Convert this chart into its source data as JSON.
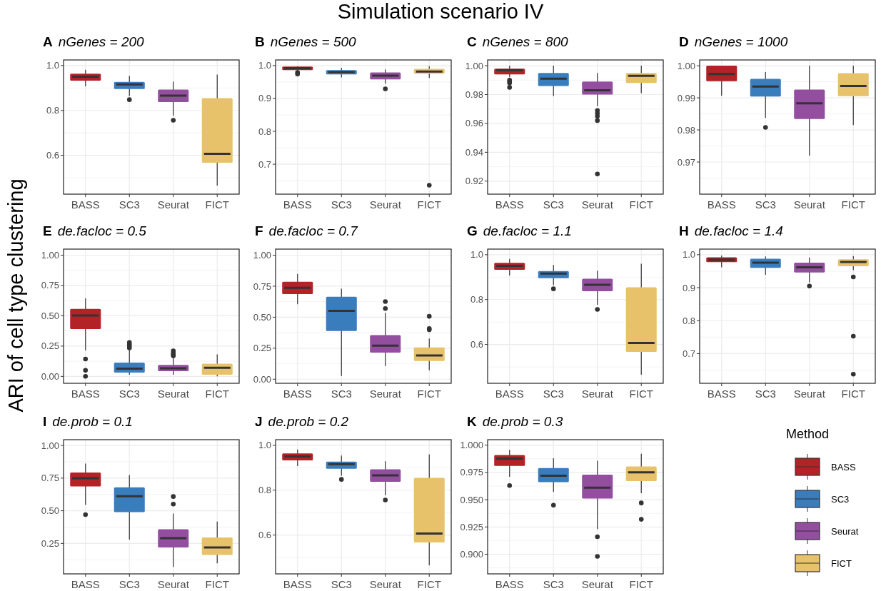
{
  "chart_data": [
    {
      "type": "box",
      "title": "nGenes = 200",
      "annotations": [
        "A",
        "Simulation scenario IV"
      ],
      "ylabel": "ARI of cell type clustering",
      "categories": [
        "BASS",
        "SC3",
        "Seurat",
        "FICT"
      ],
      "colors": [
        "#b22226",
        "#3a7dbd",
        "#944ea0",
        "#e8c26a"
      ],
      "ylim": [
        0.427,
        1.025
      ],
      "yticks": [
        {
          "value": 0.6,
          "label": "0.6"
        },
        {
          "value": 0.8,
          "label": "0.8"
        },
        {
          "value": 1,
          "label": "1.0"
        }
      ],
      "grid": true,
      "boxes": [
        {
          "low": 0.907,
          "q1": 0.933,
          "median": 0.95,
          "q3": 0.964,
          "high": 0.981
        },
        {
          "low": 0.864,
          "q1": 0.895,
          "median": 0.916,
          "q3": 0.927,
          "high": 0.954,
          "outliers": [
            0.848
          ]
        },
        {
          "low": 0.777,
          "q1": 0.837,
          "median": 0.866,
          "q3": 0.893,
          "high": 0.929,
          "outliers": [
            0.756
          ]
        },
        {
          "low": 0.465,
          "q1": 0.567,
          "median": 0.607,
          "q3": 0.855,
          "high": 0.96
        }
      ]
    },
    {
      "type": "box",
      "title": "nGenes = 500",
      "annotations": [
        "B"
      ],
      "categories": [
        "BASS",
        "SC3",
        "Seurat",
        "FICT"
      ],
      "colors": [
        "#b22226",
        "#3a7dbd",
        "#944ea0",
        "#e8c26a"
      ],
      "ylim": [
        0.609,
        1.017
      ],
      "yticks": [
        0.7,
        0.8,
        0.9,
        {
          "value": 1,
          "label": "1.0"
        }
      ],
      "grid": true,
      "boxes": [
        {
          "low": 0.983,
          "q1": 0.986,
          "median": 0.992,
          "q3": 0.997,
          "high": 0.998,
          "outliers": [
            0.979,
            0.974
          ]
        },
        {
          "low": 0.964,
          "q1": 0.973,
          "median": 0.98,
          "q3": 0.986,
          "high": 0.993
        },
        {
          "low": 0.945,
          "q1": 0.958,
          "median": 0.969,
          "q3": 0.979,
          "high": 0.988,
          "outliers": [
            0.929
          ]
        },
        {
          "low": 0.962,
          "q1": 0.975,
          "median": 0.982,
          "q3": 0.99,
          "high": 0.998,
          "outliers": [
            0.636
          ]
        }
      ]
    },
    {
      "type": "box",
      "title": "nGenes = 800",
      "annotations": [
        "C"
      ],
      "categories": [
        "BASS",
        "SC3",
        "Seurat",
        "FICT"
      ],
      "colors": [
        "#b22226",
        "#3a7dbd",
        "#944ea0",
        "#e8c26a"
      ],
      "ylim": [
        0.911,
        1.004
      ],
      "yticks": [
        {
          "value": 0.92,
          "label": "0.92"
        },
        {
          "value": 0.94,
          "label": "0.94"
        },
        {
          "value": 0.96,
          "label": "0.96"
        },
        {
          "value": 0.98,
          "label": "0.98"
        },
        {
          "value": 1,
          "label": "1.00"
        }
      ],
      "grid": true,
      "boxes": [
        {
          "low": 0.992,
          "q1": 0.994,
          "median": 0.997,
          "q3": 0.998,
          "high": 1.0,
          "outliers": [
            0.99,
            0.989,
            0.988,
            0.985
          ]
        },
        {
          "low": 0.979,
          "q1": 0.986,
          "median": 0.991,
          "q3": 0.995,
          "high": 1.0
        },
        {
          "low": 0.972,
          "q1": 0.98,
          "median": 0.983,
          "q3": 0.989,
          "high": 0.995,
          "outliers": [
            0.969,
            0.967,
            0.965,
            0.962,
            0.925
          ]
        },
        {
          "low": 0.981,
          "q1": 0.988,
          "median": 0.993,
          "q3": 0.995,
          "high": 1.0
        }
      ]
    },
    {
      "type": "box",
      "title": "nGenes = 1000",
      "annotations": [
        "D"
      ],
      "categories": [
        "BASS",
        "SC3",
        "Seurat",
        "FICT"
      ],
      "colors": [
        "#b22226",
        "#3a7dbd",
        "#944ea0",
        "#e8c26a"
      ],
      "ylim": [
        0.96,
        1.0018
      ],
      "yticks": [
        {
          "value": 0.97,
          "label": "0.97"
        },
        {
          "value": 0.98,
          "label": "0.98"
        },
        {
          "value": 0.99,
          "label": "0.99"
        },
        {
          "value": 1,
          "label": "1.00"
        }
      ],
      "grid": true,
      "boxes": [
        {
          "low": 0.9907,
          "q1": 0.9952,
          "median": 0.9974,
          "q3": 1.0,
          "high": 1.0
        },
        {
          "low": 0.9838,
          "q1": 0.9904,
          "median": 0.9935,
          "q3": 0.9959,
          "high": 0.998,
          "outliers": [
            0.9808
          ]
        },
        {
          "low": 0.972,
          "q1": 0.9834,
          "median": 0.9883,
          "q3": 0.9926,
          "high": 1.0
        },
        {
          "low": 0.9815,
          "q1": 0.9905,
          "median": 0.9937,
          "q3": 0.9977,
          "high": 1.0
        }
      ]
    },
    {
      "type": "box",
      "title": "de.facloc = 0.5",
      "annotations": [
        "E"
      ],
      "categories": [
        "BASS",
        "SC3",
        "Seurat",
        "FICT"
      ],
      "colors": [
        "#b22226",
        "#3a7dbd",
        "#944ea0",
        "#e8c26a"
      ],
      "ylim": [
        -0.057,
        1.05
      ],
      "yticks": [
        {
          "value": 0,
          "label": "0.00"
        },
        {
          "value": 0.25,
          "label": "0.25"
        },
        {
          "value": 0.5,
          "label": "0.50"
        },
        {
          "value": 0.75,
          "label": "0.75"
        },
        {
          "value": 1,
          "label": "1.00"
        }
      ],
      "grid": true,
      "boxes": [
        {
          "low": 0.214,
          "q1": 0.39,
          "median": 0.502,
          "q3": 0.557,
          "high": 0.643,
          "outliers": [
            0.143,
            0.05,
            0.0
          ]
        },
        {
          "low": 0.014,
          "q1": 0.031,
          "median": 0.064,
          "q3": 0.114,
          "high": 0.217,
          "outliers": [
            0.235,
            0.25,
            0.265,
            0.28
          ]
        },
        {
          "low": 0.014,
          "q1": 0.043,
          "median": 0.067,
          "q3": 0.095,
          "high": 0.157,
          "outliers": [
            0.17,
            0.18,
            0.19,
            0.21
          ]
        },
        {
          "low": 0.0,
          "q1": 0.014,
          "median": 0.071,
          "q3": 0.105,
          "high": 0.181
        }
      ]
    },
    {
      "type": "box",
      "title": "de.facloc = 0.7",
      "annotations": [
        "F"
      ],
      "categories": [
        "BASS",
        "SC3",
        "Seurat",
        "FICT"
      ],
      "colors": [
        "#b22226",
        "#3a7dbd",
        "#944ea0",
        "#e8c26a"
      ],
      "ylim": [
        -0.033,
        1.049
      ],
      "yticks": [
        {
          "value": 0,
          "label": "0.00"
        },
        {
          "value": 0.25,
          "label": "0.25"
        },
        {
          "value": 0.5,
          "label": "0.50"
        },
        {
          "value": 0.75,
          "label": "0.75"
        },
        {
          "value": 1,
          "label": "1.00"
        }
      ],
      "grid": true,
      "boxes": [
        {
          "low": 0.605,
          "q1": 0.686,
          "median": 0.737,
          "q3": 0.786,
          "high": 0.849
        },
        {
          "low": 0.026,
          "q1": 0.388,
          "median": 0.551,
          "q3": 0.665,
          "high": 0.73
        },
        {
          "low": 0.107,
          "q1": 0.214,
          "median": 0.27,
          "q3": 0.356,
          "high": 0.535,
          "outliers": [
            0.57,
            0.626
          ]
        },
        {
          "low": 0.072,
          "q1": 0.147,
          "median": 0.191,
          "q3": 0.256,
          "high": 0.328,
          "outliers": [
            0.398,
            0.409,
            0.507
          ]
        }
      ]
    },
    {
      "type": "box",
      "title": "de.facloc = 1.1",
      "annotations": [
        "G"
      ],
      "categories": [
        "BASS",
        "SC3",
        "Seurat",
        "FICT"
      ],
      "colors": [
        "#b22226",
        "#3a7dbd",
        "#944ea0",
        "#e8c26a"
      ],
      "ylim": [
        0.427,
        1.025
      ],
      "yticks": [
        {
          "value": 0.6,
          "label": "0.6"
        },
        {
          "value": 0.8,
          "label": "0.8"
        },
        {
          "value": 1,
          "label": "1.0"
        }
      ],
      "grid": true,
      "boxes": [
        {
          "low": 0.907,
          "q1": 0.933,
          "median": 0.95,
          "q3": 0.964,
          "high": 0.981
        },
        {
          "low": 0.864,
          "q1": 0.895,
          "median": 0.916,
          "q3": 0.927,
          "high": 0.954,
          "outliers": [
            0.848
          ]
        },
        {
          "low": 0.777,
          "q1": 0.837,
          "median": 0.866,
          "q3": 0.893,
          "high": 0.929,
          "outliers": [
            0.756
          ]
        },
        {
          "low": 0.465,
          "q1": 0.567,
          "median": 0.607,
          "q3": 0.855,
          "high": 0.96
        }
      ]
    },
    {
      "type": "box",
      "title": "de.facloc = 1.4",
      "annotations": [
        "H"
      ],
      "categories": [
        "BASS",
        "SC3",
        "Seurat",
        "FICT"
      ],
      "colors": [
        "#b22226",
        "#3a7dbd",
        "#944ea0",
        "#e8c26a"
      ],
      "ylim": [
        0.61,
        1.017
      ],
      "yticks": [
        0.7,
        0.8,
        0.9,
        {
          "value": 1,
          "label": "1.0"
        }
      ],
      "grid": true,
      "boxes": [
        {
          "low": 0.962,
          "q1": 0.9775,
          "median": 0.985,
          "q3": 0.992,
          "high": 0.9975
        },
        {
          "low": 0.939,
          "q1": 0.96,
          "median": 0.976,
          "q3": 0.988,
          "high": 0.995
        },
        {
          "low": 0.916,
          "q1": 0.946,
          "median": 0.962,
          "q3": 0.976,
          "high": 0.991,
          "outliers": [
            0.905
          ]
        },
        {
          "low": 0.953,
          "q1": 0.965,
          "median": 0.978,
          "q3": 0.986,
          "high": 0.996,
          "outliers": [
            0.9325,
            0.753,
            0.6375
          ]
        }
      ]
    },
    {
      "type": "box",
      "title": "de.prob = 0.1",
      "annotations": [
        "I"
      ],
      "categories": [
        "BASS",
        "SC3",
        "Seurat",
        "FICT"
      ],
      "colors": [
        "#b22226",
        "#3a7dbd",
        "#944ea0",
        "#e8c26a"
      ],
      "ylim": [
        0.017,
        1.044
      ],
      "yticks": [
        {
          "value": 0.25,
          "label": "0.25"
        },
        {
          "value": 0.5,
          "label": "0.50"
        },
        {
          "value": 0.75,
          "label": "0.75"
        },
        {
          "value": 1,
          "label": "1.00"
        }
      ],
      "grid": true,
      "boxes": [
        {
          "low": 0.545,
          "q1": 0.686,
          "median": 0.749,
          "q3": 0.793,
          "high": 0.861,
          "outliers": [
            0.47
          ]
        },
        {
          "low": 0.279,
          "q1": 0.49,
          "median": 0.611,
          "q3": 0.679,
          "high": 0.773
        },
        {
          "low": 0.07,
          "q1": 0.219,
          "median": 0.29,
          "q3": 0.358,
          "high": 0.479,
          "outliers": [
            0.551,
            0.609
          ]
        },
        {
          "low": 0.098,
          "q1": 0.162,
          "median": 0.219,
          "q3": 0.296,
          "high": 0.417
        }
      ]
    },
    {
      "type": "box",
      "title": "de.prob = 0.2",
      "annotations": [
        "J"
      ],
      "categories": [
        "BASS",
        "SC3",
        "Seurat",
        "FICT"
      ],
      "colors": [
        "#b22226",
        "#3a7dbd",
        "#944ea0",
        "#e8c26a"
      ],
      "ylim": [
        0.427,
        1.025
      ],
      "yticks": [
        {
          "value": 0.6,
          "label": "0.6"
        },
        {
          "value": 0.8,
          "label": "0.8"
        },
        {
          "value": 1,
          "label": "1.0"
        }
      ],
      "grid": true,
      "boxes": [
        {
          "low": 0.907,
          "q1": 0.933,
          "median": 0.95,
          "q3": 0.964,
          "high": 0.981
        },
        {
          "low": 0.864,
          "q1": 0.895,
          "median": 0.916,
          "q3": 0.927,
          "high": 0.954,
          "outliers": [
            0.848
          ]
        },
        {
          "low": 0.777,
          "q1": 0.837,
          "median": 0.866,
          "q3": 0.893,
          "high": 0.929,
          "outliers": [
            0.756
          ]
        },
        {
          "low": 0.465,
          "q1": 0.567,
          "median": 0.607,
          "q3": 0.855,
          "high": 0.96
        }
      ]
    },
    {
      "type": "box",
      "title": "de.prob = 0.3",
      "annotations": [
        "K"
      ],
      "legend_title": "Method",
      "legend": "right",
      "categories": [
        "BASS",
        "SC3",
        "Seurat",
        "FICT"
      ],
      "ylim": [
        0.882,
        1.005
      ],
      "yticks": [
        {
          "value": 0.9,
          "label": "0.900"
        },
        {
          "value": 0.925,
          "label": "0.925"
        },
        {
          "value": 0.95,
          "label": "0.950"
        },
        {
          "value": 0.975,
          "label": "0.975"
        },
        {
          "value": 1,
          "label": "1.000"
        }
      ],
      "grid": true,
      "series": [
        {
          "name": "BASS",
          "color": "#b22226",
          "boxes": [
            {
              "low": 0.971,
              "q1": 0.981,
              "median": 0.9876,
              "q3": 0.991,
              "high": 0.9957,
              "outliers": [
                0.963
              ]
            },
            null,
            null,
            null
          ]
        },
        {
          "name": "SC3",
          "color": "#3a7dbd",
          "boxes": [
            null,
            {
              "low": 0.957,
              "q1": 0.966,
              "median": 0.972,
              "q3": 0.979,
              "high": 0.988,
              "outliers": [
                0.945
              ]
            },
            null,
            null
          ]
        },
        {
          "name": "Seurat",
          "color": "#944ea0",
          "boxes": [
            null,
            null,
            {
              "low": 0.923,
              "q1": 0.951,
              "median": 0.961,
              "q3": 0.973,
              "high": 0.9857,
              "outliers": [
                0.916,
                0.898
              ]
            },
            null
          ]
        },
        {
          "name": "FICT",
          "color": "#e8c26a",
          "boxes": [
            null,
            null,
            null,
            {
              "low": 0.956,
              "q1": 0.967,
              "median": 0.975,
              "q3": 0.9805,
              "high": 0.992,
              "outliers": [
                0.947,
                0.932
              ]
            }
          ]
        }
      ]
    }
  ]
}
